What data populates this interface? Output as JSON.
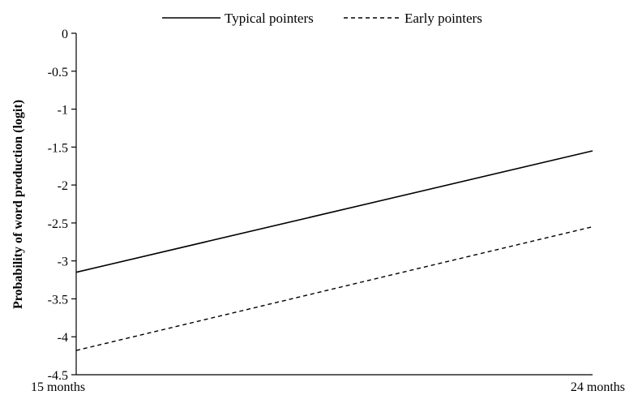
{
  "chart_data": {
    "type": "line",
    "title": "",
    "xlabel": "",
    "ylabel": "Probability of word production (logit)",
    "categories": [
      "15 months",
      "24 months"
    ],
    "ylim": [
      -4.5,
      0
    ],
    "yticks": [
      0,
      -0.5,
      -1,
      -1.5,
      -2,
      -2.5,
      -3,
      -3.5,
      -4,
      -4.5
    ],
    "ytick_labels": [
      "0",
      "-0.5",
      "-1",
      "-1.5",
      "-2",
      "-2.5",
      "-3",
      "-3.5",
      "-4",
      "-4.5"
    ],
    "grid": false,
    "legend_position": "top",
    "series": [
      {
        "name": "Typical pointers",
        "values": [
          -3.15,
          -1.55
        ],
        "line_style": "solid",
        "color": "#000000"
      },
      {
        "name": "Early pointers",
        "values": [
          -4.18,
          -2.55
        ],
        "line_style": "dashed",
        "color": "#000000"
      }
    ]
  }
}
